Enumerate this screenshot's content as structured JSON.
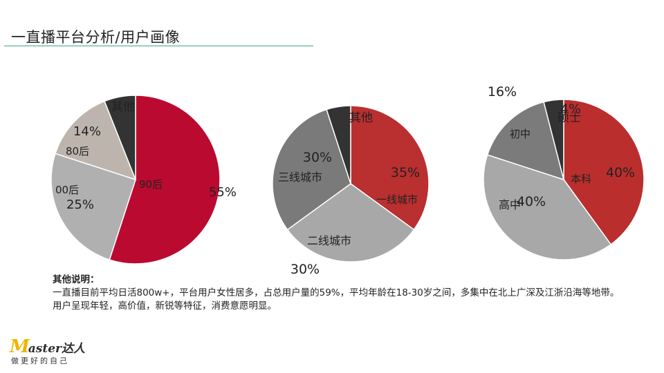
{
  "header": {
    "title": "一直播平台分析/用户画像"
  },
  "chart_data": [
    {
      "type": "pie",
      "slices": [
        {
          "label": "90后",
          "value": 55,
          "value_label": "55%",
          "color": "#bb0a30"
        },
        {
          "label": "00后",
          "value": 25,
          "value_label": "25%",
          "color": "#b0b0b0"
        },
        {
          "label": "80后",
          "value": 14,
          "value_label": "14%",
          "color": "#bdb5ad"
        },
        {
          "label": "其他",
          "value": 6,
          "value_label": "",
          "color": "#333333"
        }
      ]
    },
    {
      "type": "pie",
      "slices": [
        {
          "label": "一线城市",
          "value": 35,
          "value_label": "35%",
          "color": "#ba2f2f"
        },
        {
          "label": "二线城市",
          "value": 30,
          "value_label": "30%",
          "color": "#a8a8a8"
        },
        {
          "label": "三线城市",
          "value": 30,
          "value_label": "30%",
          "color": "#7a7a7a"
        },
        {
          "label": "其他",
          "value": 5,
          "value_label": "",
          "color": "#333333"
        }
      ]
    },
    {
      "type": "pie",
      "slices": [
        {
          "label": "本科",
          "value": 40,
          "value_label": "40%",
          "color": "#bb2e2e"
        },
        {
          "label": "高中",
          "value": 40,
          "value_label": "40%",
          "color": "#a8a8a8"
        },
        {
          "label": "初中",
          "value": 16,
          "value_label": "16%",
          "color": "#7b7b7b"
        },
        {
          "label": "硕士",
          "value": 4,
          "value_label": "4%",
          "color": "#333333"
        }
      ]
    }
  ],
  "notes": {
    "heading": "其他说明：",
    "line1": "一直播目前平均日活800w+，平台用户女性居多，占总用户量的59%，平均年龄在18-30岁之间，多集中在北上广深及江浙沿海等地带。",
    "line2": "用户呈现年轻，高价值，新锐等特征，消费意愿明显。"
  },
  "logo": {
    "brand_initial": "M",
    "brand_rest": "aster达人",
    "tagline": "做更好的自己"
  }
}
